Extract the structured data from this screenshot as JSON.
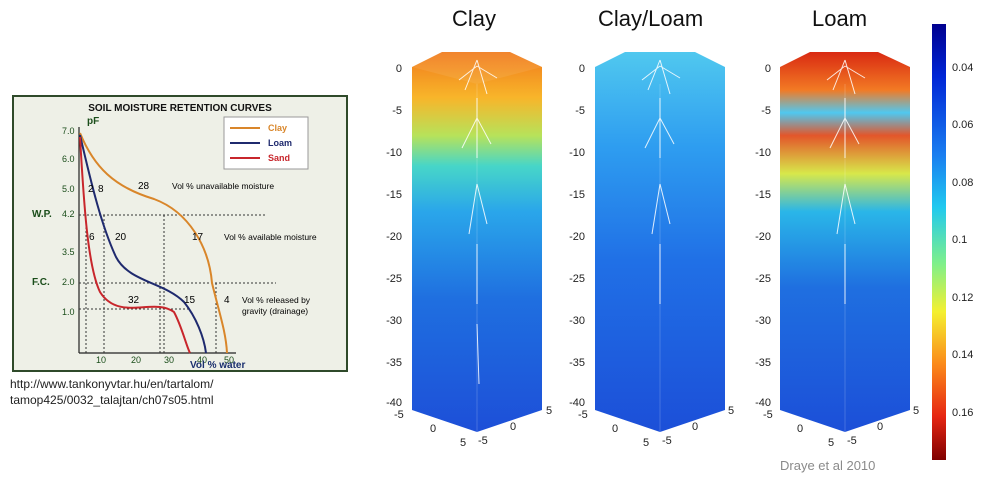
{
  "left": {
    "title": "SOIL MOISTURE RETENTION CURVES",
    "y_axis_label": "pF",
    "x_axis_label": "Vol % water",
    "y_ticks": [
      "7.0",
      "6.0",
      "5.0",
      "4.2",
      "3.5",
      "2.0",
      "1.0"
    ],
    "x_ticks": [
      "10",
      "20",
      "30",
      "40",
      "50"
    ],
    "wp_label": "W.P.",
    "fc_label": "F.C.",
    "legend": [
      {
        "name": "Clay",
        "color": "#d9862a"
      },
      {
        "name": "Loam",
        "color": "#1f2a6e"
      },
      {
        "name": "Sand",
        "color": "#c8262c"
      }
    ],
    "annotations": {
      "unavailable": "Vol % unavailable moisture",
      "available": "Vol % available moisture",
      "released_1": "Vol % released by",
      "released_2": "gravity (drainage)"
    },
    "numbers": {
      "n2": "2",
      "n8": "8",
      "n28": "28",
      "n6": "6",
      "n20": "20",
      "n17": "17",
      "n32": "32",
      "n15": "15",
      "n4": "4"
    },
    "caption_1": "http://www.tankonyvtar.hu/en/tartalom/",
    "caption_2": "tamop425/0032_talajtan/ch07s05.html"
  },
  "columns": [
    {
      "title": "Clay"
    },
    {
      "title": "Clay/Loam"
    },
    {
      "title": "Loam"
    }
  ],
  "y_axis_ticks": [
    "0",
    "-5",
    "-10",
    "-15",
    "-20",
    "-25",
    "-30",
    "-35",
    "-40"
  ],
  "xy_ticks": {
    "a": "-5",
    "b": "0",
    "c": "5"
  },
  "colorbar": {
    "ticks": [
      "0.04",
      "0.06",
      "0.08",
      "0.1",
      "0.12",
      "0.14",
      "0.16"
    ]
  },
  "credit": "Draye et al 2010"
}
